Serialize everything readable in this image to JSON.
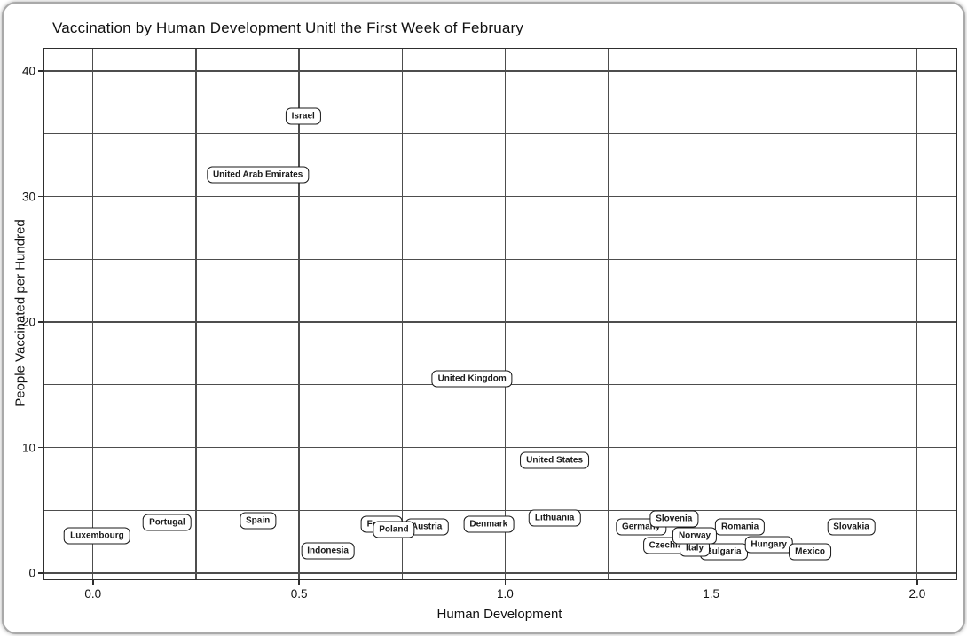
{
  "chart_data": {
    "type": "scatter",
    "title": "Vaccination by Human Development Unitl the First Week of February",
    "xlabel": "Human Development",
    "ylabel": "People Vaccinated per Hundred",
    "xlim": [
      -0.118,
      2.095
    ],
    "ylim": [
      -0.49,
      41.77
    ],
    "x_ticks": [
      "0.0",
      "0.5",
      "1.0",
      "1.5",
      "2.0"
    ],
    "x_tick_values": [
      0.0,
      0.5,
      1.0,
      1.5,
      2.0
    ],
    "y_ticks": [
      "0",
      "10",
      "20",
      "30",
      "40"
    ],
    "y_tick_values": [
      0,
      10,
      20,
      30,
      40
    ],
    "x_gridline_values": [
      0.0,
      0.25,
      0.5,
      0.75,
      1.0,
      1.25,
      1.5,
      1.75,
      2.0
    ],
    "y_gridline_values": [
      0,
      5,
      10,
      15,
      20,
      25,
      30,
      35,
      40
    ],
    "grid": true,
    "legend": "none",
    "grid_color": "#4d4d4d",
    "panel_border_color": "#2e2e2e",
    "label_box_border_color": "#1a1a1a",
    "background_color": "#ffffff",
    "points": [
      {
        "label": "Israel",
        "x": 0.51,
        "y": 36.4,
        "z": 1
      },
      {
        "label": "United Arab Emirates",
        "x": 0.4,
        "y": 31.7,
        "z": 1
      },
      {
        "label": "United Kingdom",
        "x": 0.92,
        "y": 15.5,
        "z": 1
      },
      {
        "label": "United States",
        "x": 1.12,
        "y": 9.0,
        "z": 1
      },
      {
        "label": "Lithuania",
        "x": 1.12,
        "y": 4.4,
        "z": 1
      },
      {
        "label": "Luxembourg",
        "x": 0.01,
        "y": 3.0,
        "z": 1
      },
      {
        "label": "Portugal",
        "x": 0.18,
        "y": 4.0,
        "z": 1
      },
      {
        "label": "Spain",
        "x": 0.4,
        "y": 4.2,
        "z": 1
      },
      {
        "label": "Indonesia",
        "x": 0.57,
        "y": 1.8,
        "z": 1
      },
      {
        "label": "France",
        "x": 0.7,
        "y": 3.9,
        "z": 1
      },
      {
        "label": "Poland",
        "x": 0.73,
        "y": 3.5,
        "z": 3
      },
      {
        "label": "Austria",
        "x": 0.81,
        "y": 3.7,
        "z": 2
      },
      {
        "label": "Denmark",
        "x": 0.96,
        "y": 3.9,
        "z": 1
      },
      {
        "label": "Germany",
        "x": 1.33,
        "y": 3.7,
        "z": 1
      },
      {
        "label": "Slovenia",
        "x": 1.41,
        "y": 4.3,
        "z": 2
      },
      {
        "label": "Norway",
        "x": 1.46,
        "y": 3.0,
        "z": 3
      },
      {
        "label": "Czechia",
        "x": 1.39,
        "y": 2.2,
        "z": 1
      },
      {
        "label": "Italy",
        "x": 1.46,
        "y": 2.0,
        "z": 2
      },
      {
        "label": "Bulgaria",
        "x": 1.53,
        "y": 1.7,
        "z": 1
      },
      {
        "label": "Romania",
        "x": 1.57,
        "y": 3.7,
        "z": 2
      },
      {
        "label": "Hungary",
        "x": 1.64,
        "y": 2.3,
        "z": 2
      },
      {
        "label": "Mexico",
        "x": 1.74,
        "y": 1.7,
        "z": 3
      },
      {
        "label": "Slovakia",
        "x": 1.84,
        "y": 3.7,
        "z": 1
      }
    ]
  }
}
